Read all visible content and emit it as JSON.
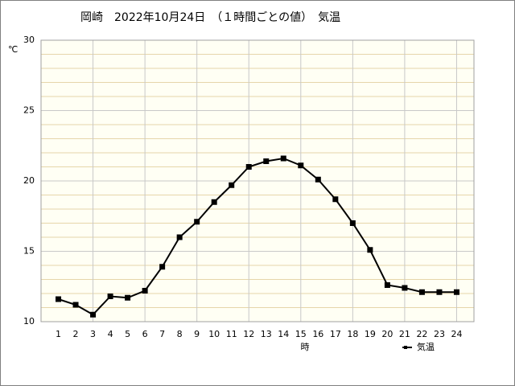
{
  "chart_data": {
    "type": "line",
    "title": "岡崎　2022年10月24日　（１時間ごとの値）　気温",
    "y_unit": "℃",
    "x_label": "時",
    "x": [
      1,
      2,
      3,
      4,
      5,
      6,
      7,
      8,
      9,
      10,
      11,
      12,
      13,
      14,
      15,
      16,
      17,
      18,
      19,
      20,
      21,
      22,
      23,
      24
    ],
    "series": [
      {
        "name": "気温",
        "color": "#000000",
        "values": [
          11.6,
          11.2,
          10.5,
          11.8,
          11.7,
          12.2,
          13.9,
          16.0,
          17.1,
          18.5,
          19.7,
          21.0,
          21.4,
          21.6,
          21.1,
          20.1,
          18.7,
          17.0,
          15.1,
          12.6,
          12.4,
          12.1,
          12.1,
          12.1
        ]
      }
    ],
    "xlim": [
      0,
      25
    ],
    "xticks": [
      1,
      2,
      3,
      4,
      5,
      6,
      7,
      8,
      9,
      10,
      11,
      12,
      13,
      14,
      15,
      16,
      17,
      18,
      19,
      20,
      21,
      22,
      23,
      24
    ],
    "xgrid": [
      3,
      6,
      9,
      12,
      15,
      18,
      21,
      24
    ],
    "ylim": [
      10,
      30
    ],
    "yticks": [
      10,
      15,
      20,
      25,
      30
    ],
    "yminorgrid": [
      11,
      12,
      13,
      14,
      16,
      17,
      18,
      19,
      21,
      22,
      23,
      24,
      26,
      27,
      28,
      29
    ],
    "grid": true,
    "legend": "bottom-right"
  }
}
